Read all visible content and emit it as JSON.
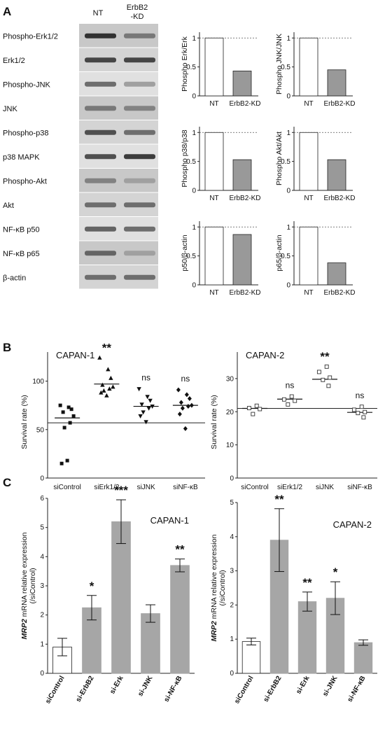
{
  "panels": {
    "a": "A",
    "b": "B",
    "c": "C"
  },
  "panel_a": {
    "lanes": [
      "NT",
      "ErbB2\n-KD"
    ],
    "blot_rows": [
      {
        "label": "Phospho-Erk1/2",
        "intensity": [
          0.85,
          0.5
        ]
      },
      {
        "label": "Erk1/2",
        "intensity": [
          0.75,
          0.75
        ]
      },
      {
        "label": "Phospho-JNK",
        "intensity": [
          0.55,
          0.3
        ]
      },
      {
        "label": "JNK",
        "intensity": [
          0.5,
          0.45
        ]
      },
      {
        "label": "Phospho-p38",
        "intensity": [
          0.7,
          0.55
        ]
      },
      {
        "label": "p38 MAPK",
        "intensity": [
          0.7,
          0.8
        ]
      },
      {
        "label": "Phospho-Akt",
        "intensity": [
          0.45,
          0.3
        ]
      },
      {
        "label": "Akt",
        "intensity": [
          0.55,
          0.55
        ]
      },
      {
        "label": "NF-κB p50",
        "intensity": [
          0.6,
          0.55
        ]
      },
      {
        "label": "NF-κB p65",
        "intensity": [
          0.6,
          0.3
        ]
      },
      {
        "label": "β-actin",
        "intensity": [
          0.55,
          0.55
        ]
      }
    ]
  },
  "chart_data": [
    {
      "type": "bar",
      "panel": "A",
      "categories": [
        "NT",
        "ErbB2-KD"
      ],
      "values": [
        1,
        0.43
      ],
      "ylabel": "Phospho Erk/Erk",
      "yticks": [
        "0",
        "0.5",
        "1"
      ],
      "ylim": [
        0,
        1.1
      ],
      "reference_line": 1
    },
    {
      "type": "bar",
      "panel": "A",
      "categories": [
        "NT",
        "ErbB2-KD"
      ],
      "values": [
        1,
        0.45
      ],
      "ylabel": "Phospho JNK/JNK",
      "yticks": [
        "0",
        "0.5",
        "1"
      ],
      "ylim": [
        0,
        1.1
      ],
      "reference_line": 1
    },
    {
      "type": "bar",
      "panel": "A",
      "categories": [
        "NT",
        "ErbB2-KD"
      ],
      "values": [
        1,
        0.53
      ],
      "ylabel": "Phospho p38/p38",
      "yticks": [
        "0",
        "0.5",
        "1"
      ],
      "ylim": [
        0,
        1.1
      ],
      "reference_line": 1
    },
    {
      "type": "bar",
      "panel": "A",
      "categories": [
        "NT",
        "ErbB2-KD"
      ],
      "values": [
        1,
        0.53
      ],
      "ylabel": "Phospho Akt/Akt",
      "yticks": [
        "0",
        "0.5",
        "1"
      ],
      "ylim": [
        0,
        1.1
      ],
      "reference_line": 1
    },
    {
      "type": "bar",
      "panel": "A",
      "categories": [
        "NT",
        "ErbB2-KD"
      ],
      "values": [
        1,
        0.87
      ],
      "ylabel": "p50/β-actin",
      "yticks": [
        "0",
        "0.5",
        "1"
      ],
      "ylim": [
        0,
        1.1
      ],
      "reference_line": 1
    },
    {
      "type": "bar",
      "panel": "A",
      "categories": [
        "NT",
        "ErbB2-KD"
      ],
      "values": [
        1,
        0.38
      ],
      "ylabel": "p65/β-actin",
      "yticks": [
        "0",
        "0.5",
        "1"
      ],
      "ylim": [
        0,
        1.1
      ],
      "reference_line": 1
    },
    {
      "type": "scatter",
      "panel": "B",
      "title": "CAPAN-1",
      "ylabel": "Survival rate (%)",
      "categories": [
        "siControl",
        "siErk1/2",
        "siJNK",
        "siNF-κB"
      ],
      "markers": [
        "square",
        "triangle-up",
        "triangle-down",
        "diamond"
      ],
      "ylim": [
        0,
        130
      ],
      "yticks": [
        "0",
        "50",
        "100"
      ],
      "reference_line": 57,
      "points": [
        [
          75,
          73,
          71,
          68,
          64,
          57,
          52,
          15,
          18
        ],
        [
          124,
          112,
          103,
          96,
          94,
          92,
          90,
          88,
          85
        ],
        [
          92,
          84,
          80,
          76,
          74,
          72,
          68,
          64,
          58
        ],
        [
          91,
          86,
          82,
          78,
          75,
          74,
          72,
          66,
          51
        ]
      ],
      "medians": [
        62,
        97,
        74,
        75
      ],
      "significance": [
        "",
        "**",
        "ns",
        "ns"
      ]
    },
    {
      "type": "scatter",
      "panel": "B",
      "title": "CAPAN-2",
      "ylabel": "Survival rate (%)",
      "categories": [
        "siControl",
        "siErk1/2",
        "siJNK",
        "siNF-κB"
      ],
      "markers": [
        "square-open",
        "square-open",
        "square-open",
        "square-open"
      ],
      "ylim": [
        0,
        38
      ],
      "yticks": [
        "0",
        "10",
        "20",
        "30"
      ],
      "reference_line": 21,
      "points": [
        [
          21.8,
          21.1,
          20.8,
          19.3
        ],
        [
          24.6,
          23.7,
          23.3,
          22.2
        ],
        [
          33.6,
          32.0,
          30.3,
          29.6,
          27.8
        ],
        [
          21.5,
          20.6,
          19.9,
          19.6,
          18.3
        ]
      ],
      "medians": [
        21,
        23.8,
        29.8,
        19.8
      ],
      "significance": [
        "",
        "ns",
        "**",
        "ns"
      ]
    },
    {
      "type": "bar",
      "panel": "C",
      "title": "CAPAN-1",
      "ylabel": "MRP2 mRNA relative expression (/siControl)",
      "categories": [
        "siControl",
        "si-ErbB2",
        "si-Erk",
        "si-JNK",
        "si-NF-κB"
      ],
      "values": [
        0.9,
        2.25,
        5.2,
        2.05,
        3.7
      ],
      "errors": [
        0.3,
        0.42,
        0.75,
        0.3,
        0.22
      ],
      "ylim": [
        0,
        6
      ],
      "yticks": [
        "0",
        "1",
        "2",
        "3",
        "4",
        "5",
        "6"
      ],
      "significance": [
        "",
        "*",
        "***",
        "",
        "**"
      ]
    },
    {
      "type": "bar",
      "panel": "C",
      "title": "CAPAN-2",
      "ylabel": "MRP2 mRNA relative expression (/siControl)",
      "categories": [
        "siControl",
        "si-ErbB2",
        "si-Erk",
        "si-JNK",
        "si-NF-κB"
      ],
      "values": [
        0.93,
        3.9,
        2.1,
        2.2,
        0.9
      ],
      "errors": [
        0.1,
        0.92,
        0.28,
        0.48,
        0.08
      ],
      "ylim": [
        0,
        5
      ],
      "yticks": [
        "0",
        "1",
        "2",
        "3",
        "4",
        "5"
      ],
      "significance": [
        "",
        "**",
        "**",
        "*",
        ""
      ]
    }
  ]
}
